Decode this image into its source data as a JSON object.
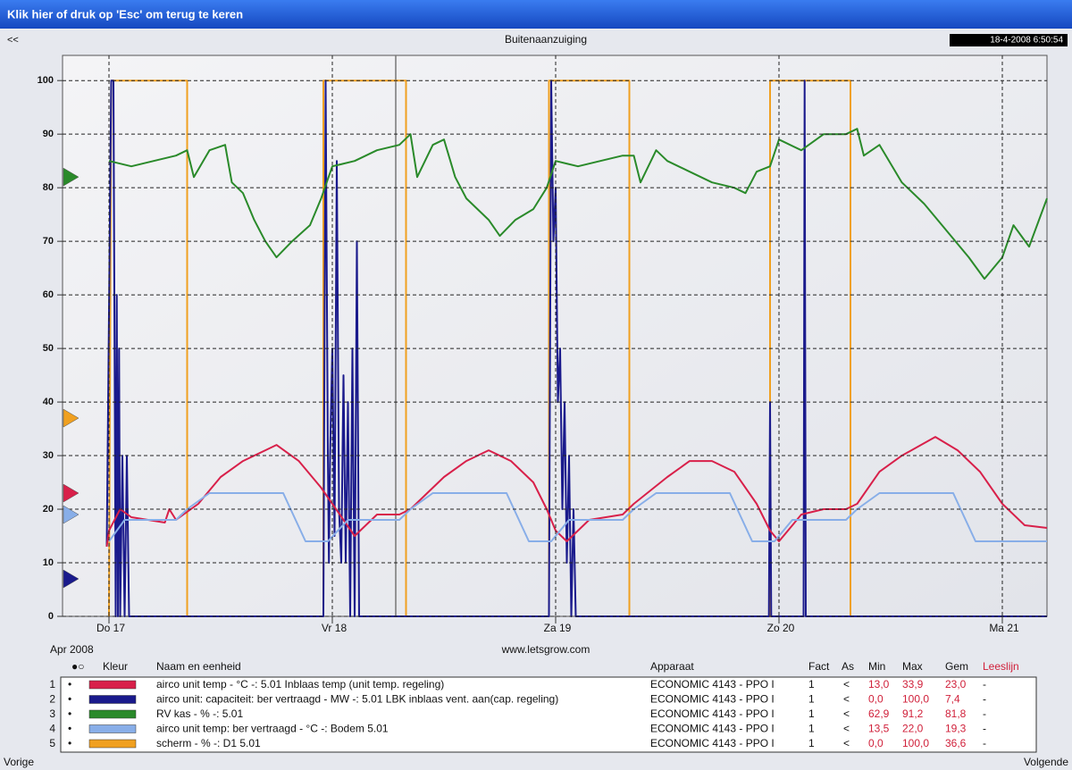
{
  "window": {
    "title": "Klik hier of druk op 'Esc' om terug te keren",
    "back": "<<",
    "timestamp": "18-4-2008 6:50:54",
    "site": "www.letsgrow.com",
    "prev": "Vorige",
    "next": "Volgende"
  },
  "chart_data": {
    "type": "line",
    "title": "Buitenaanzuiging",
    "x_label": "Apr 2008",
    "xlim": [
      16.792,
      21.2
    ],
    "ylim": [
      0,
      104.7
    ],
    "xticks": [
      {
        "value": 17,
        "label": "Do 17"
      },
      {
        "value": 18,
        "label": "Vr 18"
      },
      {
        "value": 19,
        "label": "Za 19"
      },
      {
        "value": 20,
        "label": "Zo 20"
      },
      {
        "value": 21,
        "label": "Ma 21"
      }
    ],
    "yticks": [
      0,
      10,
      20,
      30,
      40,
      50,
      60,
      70,
      80,
      90,
      100
    ],
    "grid": true,
    "series": [
      {
        "name": "scherm",
        "color": "#f0a020",
        "marker": 37,
        "x": [
          17.0,
          17.01,
          17.35,
          17.35,
          17.96,
          17.96,
          18.33,
          18.33,
          18.97,
          18.97,
          19.33,
          19.33,
          19.96,
          19.96,
          20.32,
          20.32,
          21.2
        ],
        "values": [
          0,
          100,
          100,
          0,
          0,
          100,
          100,
          0,
          0,
          100,
          100,
          0,
          0,
          100,
          100,
          0,
          0
        ]
      },
      {
        "name": "airco unit capaciteit",
        "color": "#1a1a8c",
        "marker": 7,
        "x": [
          16.99,
          17.01,
          17.02,
          17.03,
          17.035,
          17.04,
          17.045,
          17.05,
          17.06,
          17.07,
          17.08,
          17.09,
          17.96,
          17.97,
          17.98,
          17.985,
          17.99,
          18.0,
          18.01,
          18.02,
          18.03,
          18.04,
          18.05,
          18.06,
          18.07,
          18.08,
          18.09,
          18.1,
          18.11,
          18.12,
          18.97,
          18.98,
          18.99,
          19.0,
          19.01,
          19.02,
          19.03,
          19.04,
          19.05,
          19.06,
          19.07,
          19.08,
          19.09,
          19.955,
          19.96,
          19.965,
          20.11,
          20.115,
          20.12,
          21.2
        ],
        "values": [
          13,
          100,
          100,
          0,
          60,
          0,
          50,
          0,
          30,
          0,
          30,
          0,
          0,
          100,
          30,
          10,
          30,
          50,
          15,
          85,
          20,
          10,
          45,
          10,
          40,
          0,
          50,
          0,
          70,
          0,
          0,
          100,
          70,
          80,
          40,
          50,
          20,
          40,
          10,
          30,
          0,
          20,
          0,
          0,
          40,
          0,
          0,
          100,
          0,
          0
        ]
      },
      {
        "name": "RV kas",
        "color": "#2a8a2a",
        "marker": 82,
        "x": [
          17.0,
          17.1,
          17.2,
          17.3,
          17.35,
          17.38,
          17.45,
          17.52,
          17.55,
          17.6,
          17.65,
          17.7,
          17.75,
          17.82,
          17.9,
          17.95,
          18.0,
          18.1,
          18.2,
          18.3,
          18.35,
          18.38,
          18.45,
          18.5,
          18.55,
          18.6,
          18.7,
          18.75,
          18.82,
          18.9,
          18.96,
          19.0,
          19.1,
          19.2,
          19.3,
          19.35,
          19.38,
          19.45,
          19.5,
          19.6,
          19.7,
          19.8,
          19.85,
          19.9,
          19.96,
          20.0,
          20.1,
          20.2,
          20.3,
          20.35,
          20.38,
          20.45,
          20.55,
          20.65,
          20.75,
          20.85,
          20.92,
          21.0,
          21.05,
          21.12,
          21.2
        ],
        "values": [
          85,
          84,
          85,
          86,
          87,
          82,
          87,
          88,
          81,
          79,
          74,
          70,
          67,
          70,
          73,
          78,
          84,
          85,
          87,
          88,
          90,
          82,
          88,
          89,
          82,
          78,
          74,
          71,
          74,
          76,
          80,
          85,
          84,
          85,
          86,
          86,
          81,
          87,
          85,
          83,
          81,
          80,
          79,
          83,
          84,
          89,
          87,
          90,
          90,
          91,
          86,
          88,
          81,
          77,
          72,
          67,
          63,
          67,
          73,
          69,
          78
        ]
      },
      {
        "name": "airco unit temp",
        "color": "#d8204a",
        "marker": 23,
        "x": [
          16.99,
          17.0,
          17.05,
          17.1,
          17.25,
          17.27,
          17.3,
          17.4,
          17.5,
          17.6,
          17.7,
          17.75,
          17.85,
          17.95,
          18.0,
          18.1,
          18.2,
          18.3,
          18.35,
          18.5,
          18.6,
          18.7,
          18.8,
          18.9,
          18.96,
          19.0,
          19.05,
          19.15,
          19.3,
          19.35,
          19.5,
          19.6,
          19.7,
          19.8,
          19.9,
          19.96,
          20.0,
          20.1,
          20.2,
          20.3,
          20.35,
          20.45,
          20.55,
          20.7,
          20.8,
          20.9,
          21.0,
          21.1,
          21.2
        ],
        "values": [
          13,
          16,
          20,
          18.5,
          17.5,
          20,
          18,
          21,
          26,
          29,
          31,
          32,
          29,
          24,
          21,
          15,
          19,
          19,
          20,
          26,
          29,
          31,
          29,
          25,
          20,
          16,
          14,
          18,
          19,
          21,
          26,
          29,
          29,
          27,
          21,
          16,
          14,
          19,
          20,
          20,
          21,
          27,
          30,
          33.5,
          31,
          27,
          21,
          17,
          16.5
        ]
      },
      {
        "name": "airco unit temp ber vertraagd",
        "color": "#88aee8",
        "marker": 19,
        "x": [
          17.0,
          17.07,
          17.3,
          17.35,
          17.45,
          17.78,
          17.88,
          17.98,
          18.07,
          18.3,
          18.35,
          18.45,
          18.78,
          18.88,
          18.98,
          19.06,
          19.3,
          19.35,
          19.45,
          19.78,
          19.88,
          19.98,
          20.06,
          20.3,
          20.35,
          20.45,
          20.78,
          20.88,
          21.2
        ],
        "values": [
          14,
          18,
          18,
          20,
          23,
          23,
          14,
          14,
          18,
          18,
          20,
          23,
          23,
          14,
          14,
          18,
          18,
          20,
          23,
          23,
          14,
          14,
          18,
          18,
          20,
          23,
          23,
          14,
          14
        ]
      }
    ]
  },
  "legend": {
    "headers": [
      "●○",
      "Kleur",
      "Naam en eenheid",
      "Apparaat",
      "Fact",
      "As",
      "Min",
      "Max",
      "Gem",
      "Leeslijn"
    ],
    "rows": [
      {
        "index": "1",
        "select": "•",
        "name": "airco unit temp - °C -: 5.01 Inblaas temp (unit temp. regeling)",
        "device": "ECONOMIC 4143 - PPO I",
        "fact": "1",
        "as": "<",
        "min": "13,0",
        "max": "33,9",
        "gem": "23,0",
        "read": "-"
      },
      {
        "index": "2",
        "select": "•",
        "name": "airco unit: capaciteit: ber vertraagd - MW -: 5.01 LBK inblaas vent. aan(cap. regeling)",
        "device": "ECONOMIC 4143 - PPO I",
        "fact": "1",
        "as": "<",
        "min": "0,0",
        "max": "100,0",
        "gem": "7,4",
        "read": "-"
      },
      {
        "index": "3",
        "select": "•",
        "name": "RV kas - % -: 5.01",
        "device": "ECONOMIC 4143 - PPO I",
        "fact": "1",
        "as": "<",
        "min": "62,9",
        "max": "91,2",
        "gem": "81,8",
        "read": "-"
      },
      {
        "index": "4",
        "select": "•",
        "name": "airco unit temp: ber vertraagd - °C -: Bodem 5.01",
        "device": "ECONOMIC 4143 - PPO I",
        "fact": "1",
        "as": "<",
        "min": "13,5",
        "max": "22,0",
        "gem": "19,3",
        "read": "-"
      },
      {
        "index": "5",
        "select": "•",
        "name": "scherm - % -: D1 5.01",
        "device": "ECONOMIC 4143 - PPO I",
        "fact": "1",
        "as": "<",
        "min": "0,0",
        "max": "100,0",
        "gem": "36,6",
        "read": "-"
      }
    ]
  }
}
